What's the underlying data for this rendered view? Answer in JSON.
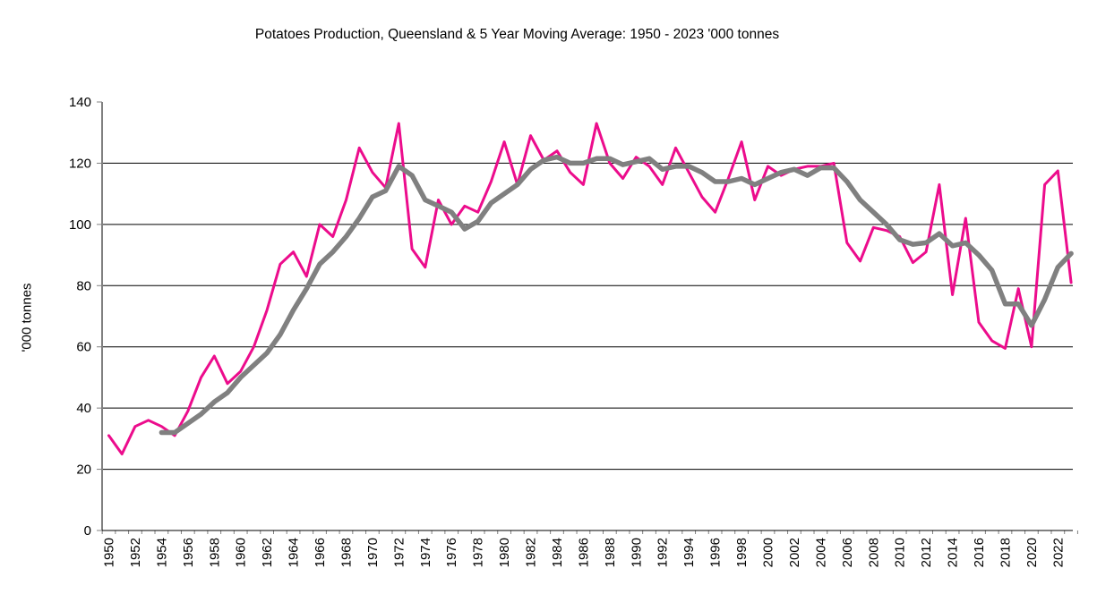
{
  "chart_data": {
    "type": "line",
    "title": "Potatoes Production, Queensland & 5 Year Moving Average: 1950 - 2023 '000 tonnes",
    "xlabel": "",
    "ylabel": "'000 tonnes",
    "ylim": [
      0,
      140
    ],
    "yticks": [
      0,
      20,
      40,
      60,
      80,
      100,
      120,
      140
    ],
    "xlim": [
      1950,
      2023
    ],
    "xtick_labels": [
      "1950",
      "1952",
      "1954",
      "1956",
      "1958",
      "1960",
      "1962",
      "1964",
      "1966",
      "1968",
      "1970",
      "1972",
      "1974",
      "1976",
      "1978",
      "1980",
      "1982",
      "1984",
      "1986",
      "1988",
      "1990",
      "1992",
      "1994",
      "1996",
      "1998",
      "2000",
      "2002",
      "2004",
      "2006",
      "2008",
      "2010",
      "2012",
      "2014",
      "2016",
      "2018",
      "2020",
      "2022"
    ],
    "grid": "horizontal",
    "legend": "none",
    "x": [
      1950,
      1951,
      1952,
      1953,
      1954,
      1955,
      1956,
      1957,
      1958,
      1959,
      1960,
      1961,
      1962,
      1963,
      1964,
      1965,
      1966,
      1967,
      1968,
      1969,
      1970,
      1971,
      1972,
      1973,
      1974,
      1975,
      1976,
      1977,
      1978,
      1979,
      1980,
      1981,
      1982,
      1983,
      1984,
      1985,
      1986,
      1987,
      1988,
      1989,
      1990,
      1991,
      1992,
      1993,
      1994,
      1995,
      1996,
      1997,
      1998,
      1999,
      2000,
      2001,
      2002,
      2003,
      2004,
      2005,
      2006,
      2007,
      2008,
      2009,
      2010,
      2011,
      2012,
      2013,
      2014,
      2015,
      2016,
      2017,
      2018,
      2019,
      2020,
      2021,
      2022,
      2023
    ],
    "series": [
      {
        "name": "Production",
        "color": "#EC0C8C",
        "values": [
          31,
          25,
          34,
          36,
          34,
          31,
          39,
          50,
          57,
          48,
          52,
          60,
          72,
          87,
          91,
          83,
          100,
          96,
          108,
          125,
          117,
          112,
          133,
          92,
          86,
          108,
          100,
          106,
          104,
          114,
          127,
          113,
          129,
          121,
          124,
          117,
          113,
          133,
          120,
          115,
          122,
          119,
          113,
          125,
          117,
          109,
          104,
          115,
          127,
          108,
          119,
          116,
          118,
          119,
          119,
          120,
          94,
          88,
          99,
          98,
          96,
          87.5,
          91,
          113,
          77,
          102,
          68,
          62,
          59.5,
          79,
          60,
          113,
          117.5,
          81
        ]
      },
      {
        "name": "5 Year Moving Average",
        "color": "#808080",
        "values": [
          null,
          null,
          null,
          null,
          32,
          32,
          35,
          38,
          42,
          45,
          50,
          54,
          58,
          64,
          72,
          79,
          87,
          91,
          96,
          102,
          109,
          111,
          119,
          116,
          108,
          106,
          104,
          98.5,
          101,
          107,
          110,
          113,
          118,
          121,
          122,
          120,
          120,
          121.5,
          121.5,
          119.5,
          120.5,
          121.5,
          118,
          119,
          119,
          117,
          114,
          114,
          115,
          113,
          115,
          117,
          118,
          116,
          118.5,
          118.5,
          114,
          108,
          104,
          100,
          95,
          93.5,
          94,
          97,
          93,
          94,
          90,
          85,
          74,
          74,
          67,
          75.5,
          86,
          90.5
        ]
      }
    ]
  }
}
